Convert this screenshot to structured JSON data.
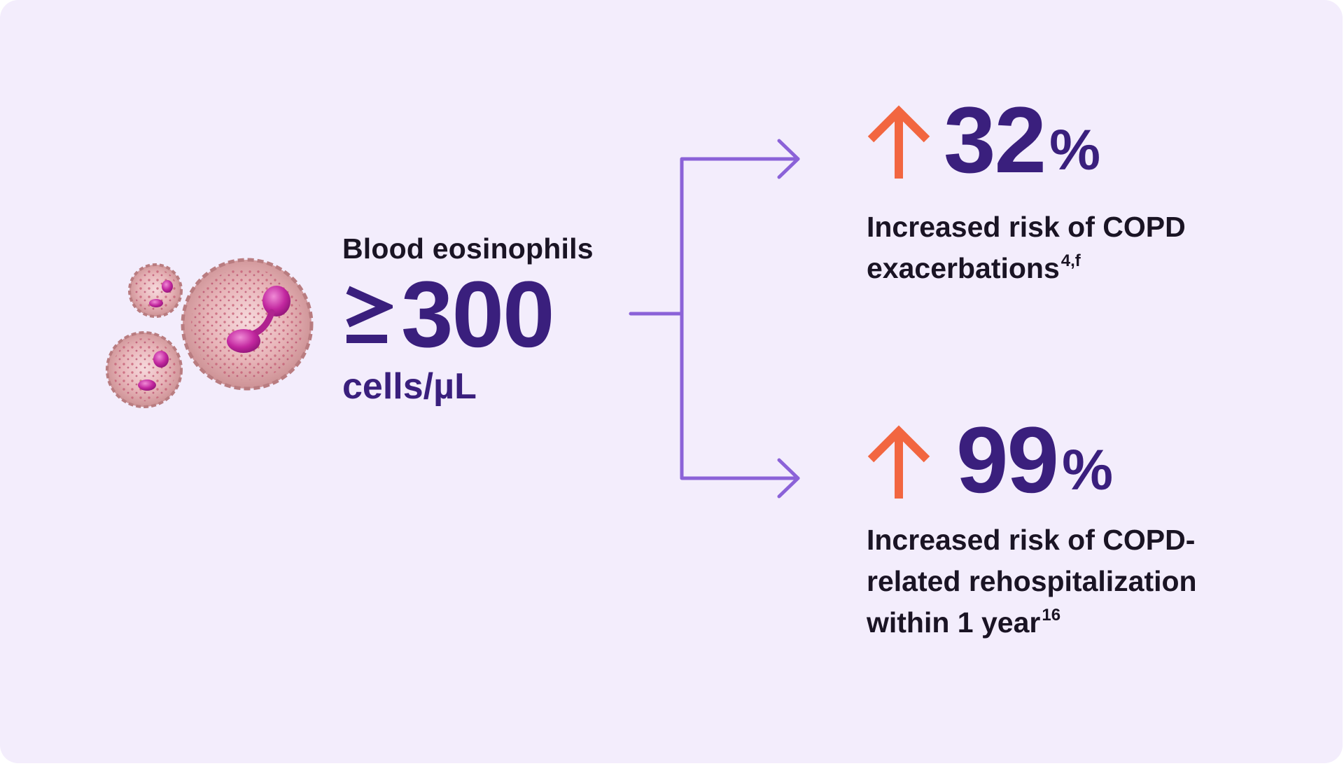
{
  "colors": {
    "background": "#f3edfc",
    "number_purple": "#3a1f7d",
    "connector_purple": "#8b62d8",
    "arrow_orange": "#f26640",
    "text_dark": "#1a1424"
  },
  "illustration": {
    "icon": "eosinophil-cells-icon"
  },
  "eosinophils": {
    "label": "Blood eosinophils",
    "symbol": "≥",
    "value": "300",
    "unit": "cells/µL"
  },
  "stats": [
    {
      "arrow_icon": "up-arrow-icon",
      "value": "32",
      "percent": "%",
      "description": "Increased risk of COPD exacerbations",
      "superscript": "4,f"
    },
    {
      "arrow_icon": "up-arrow-icon",
      "value": "99",
      "percent": "%",
      "description": "Increased risk of COPD-related rehospitalization within 1 year",
      "superscript": "16"
    }
  ]
}
